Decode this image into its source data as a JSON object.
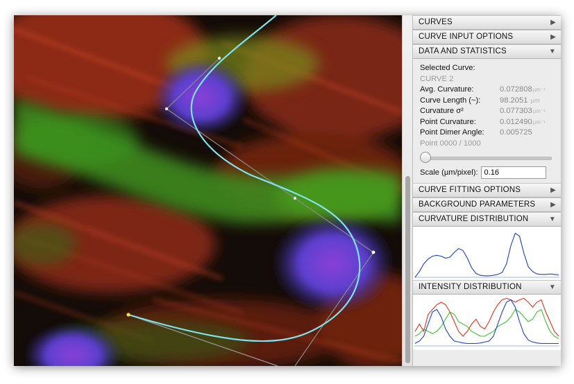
{
  "panel": {
    "sections": {
      "curves": "CURVES",
      "curve_input_options": "CURVE INPUT OPTIONS",
      "data_and_statistics": "DATA AND STATISTICS",
      "curve_fitting_options": "CURVE FITTING OPTIONS",
      "background_parameters": "BACKGROUND PARAMETERS",
      "curvature_distribution": "CURVATURE DISTRIBUTION",
      "intensity_distribution": "INTENSITY DISTRIBUTION"
    },
    "stats": {
      "selected_curve_label": "Selected Curve:",
      "selected_curve_value": "CURVE 2",
      "avg_curvature_label": "Avg. Curvature:",
      "avg_curvature_value": "0.072808",
      "avg_curvature_unit": "µm⁻¹",
      "curve_length_label": "Curve Length (~):",
      "curve_length_value": "98.2051",
      "curve_length_unit": "µm",
      "curvature_sigma_label": "Curvature σ²",
      "curvature_sigma_value": "0.077303",
      "curvature_sigma_unit": "µm⁻¹",
      "point_curvature_label": "Point Curvature:",
      "point_curvature_value": "0.012490",
      "point_curvature_unit": "µm⁻¹",
      "point_dimer_angle_label": "Point Dimer Angle:",
      "point_dimer_angle_value": "0.005725",
      "point_counter": "Point 0000 / 1000",
      "point_slider_fraction": 0,
      "scale_label": "Scale (µm/pixel):",
      "scale_value": "0.16"
    }
  },
  "icons": {
    "collapsed": "triangle-right-icon",
    "expanded": "triangle-down-icon"
  },
  "colors": {
    "curve": "#7fe3ee",
    "control_polygon": "#8a8a8a",
    "curvature_plot": "#1a3fc8",
    "intensity_red": "#e0301e",
    "intensity_green": "#3fc030",
    "intensity_blue": "#1a3fc8"
  },
  "chart_data": [
    {
      "type": "line",
      "name": "curvature distribution",
      "series": [
        {
          "values": [
            0.0,
            0.12,
            0.28,
            0.38,
            0.44,
            0.46,
            0.44,
            0.4,
            0.42,
            0.52,
            0.6,
            0.56,
            0.4,
            0.2,
            0.08,
            0.04,
            0.03,
            0.03,
            0.04,
            0.06,
            0.1,
            0.28,
            0.66,
            0.92,
            0.86,
            0.5,
            0.22,
            0.12,
            0.07,
            0.06,
            0.06,
            0.07,
            0.06,
            0.05
          ]
        }
      ]
    },
    {
      "type": "line",
      "name": "intensity distribution",
      "series": [
        {
          "color": "red",
          "values": [
            0.3,
            0.45,
            0.3,
            0.65,
            0.75,
            0.85,
            0.9,
            0.85,
            0.7,
            0.5,
            0.3,
            0.2,
            0.3,
            0.45,
            0.55,
            0.4,
            0.35,
            0.5,
            0.7,
            0.85,
            0.95,
            0.98,
            0.95,
            0.9,
            0.95,
            0.98,
            0.9,
            0.8,
            0.9,
            0.95,
            0.7,
            0.5,
            0.3,
            0.2
          ]
        },
        {
          "color": "green",
          "values": [
            0.2,
            0.25,
            0.35,
            0.3,
            0.25,
            0.3,
            0.4,
            0.55,
            0.7,
            0.65,
            0.5,
            0.45,
            0.4,
            0.3,
            0.25,
            0.2,
            0.2,
            0.25,
            0.3,
            0.4,
            0.45,
            0.5,
            0.6,
            0.75,
            0.7,
            0.6,
            0.5,
            0.55,
            0.7,
            0.75,
            0.5,
            0.3,
            0.2,
            0.15
          ]
        },
        {
          "color": "blue",
          "values": [
            0.05,
            0.1,
            0.2,
            0.45,
            0.7,
            0.75,
            0.6,
            0.35,
            0.2,
            0.1,
            0.08,
            0.06,
            0.05,
            0.05,
            0.05,
            0.06,
            0.08,
            0.1,
            0.2,
            0.45,
            0.7,
            0.9,
            0.95,
            0.8,
            0.5,
            0.25,
            0.12,
            0.08,
            0.06,
            0.05,
            0.05,
            0.05,
            0.05,
            0.05
          ]
        }
      ]
    }
  ]
}
